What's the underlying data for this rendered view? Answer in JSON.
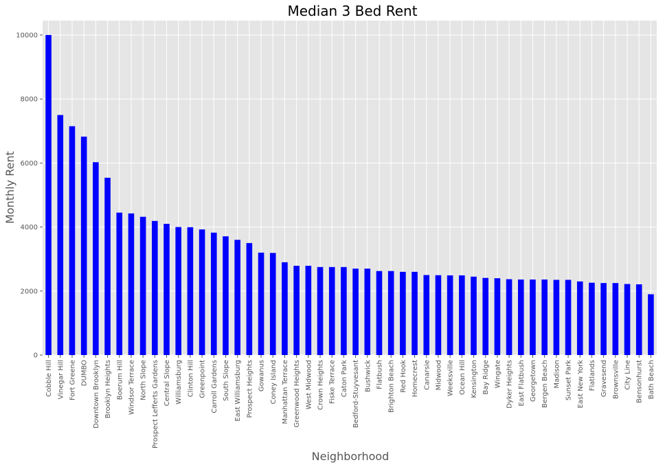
{
  "chart_data": {
    "type": "bar",
    "title": "Median 3 Bed Rent",
    "xlabel": "Neighborhood",
    "ylabel": "Monthly Rent",
    "ylim": [
      0,
      10450
    ],
    "yticks": [
      0,
      2000,
      4000,
      6000,
      8000,
      10000
    ],
    "grid": true,
    "colors": {
      "bar": "#0000ff",
      "plot_background": "#e5e5e5",
      "gridline": "#ffffff"
    },
    "categories": [
      "Cobble Hill",
      "Vinegar Hill",
      "Fort Greene",
      "DUMBO",
      "Downtown Brooklyn",
      "Brooklyn Heights",
      "Boerum Hill",
      "Windsor Terrace",
      "North Slope",
      "Prospect Lefferts Gardens",
      "Central Slope",
      "Williamsburg",
      "Clinton Hill",
      "Greenpoint",
      "Carroll Gardens",
      "South Slope",
      "East Williamsburg",
      "Prospect Heights",
      "Gowanus",
      "Coney Island",
      "Manhattan Terrace",
      "Greenwood Heights",
      "West Midwood",
      "Crown Heights",
      "Fiske Terrace",
      "Caton Park",
      "Bedford-Stuyvesant",
      "Bushwick",
      "Flatbush",
      "Brighton Beach",
      "Red Hook",
      "Homecrest",
      "Canarsie",
      "Midwood",
      "Weeksville",
      "Ocean Hill",
      "Kensington",
      "Bay Ridge",
      "Wingate",
      "Dyker Heights",
      "East Flatbush",
      "Georgetown",
      "Bergen Beach",
      "Madison",
      "Sunset Park",
      "East New York",
      "Flatlands",
      "Gravesend",
      "Brownsville",
      "City Line",
      "Bensonhurst",
      "Bath Beach"
    ],
    "values": [
      10000,
      7500,
      7150,
      6825,
      6025,
      5540,
      4450,
      4425,
      4320,
      4190,
      4100,
      4000,
      3995,
      3925,
      3825,
      3710,
      3600,
      3500,
      3200,
      3190,
      2900,
      2790,
      2790,
      2750,
      2750,
      2750,
      2700,
      2700,
      2625,
      2625,
      2600,
      2600,
      2500,
      2495,
      2490,
      2490,
      2450,
      2410,
      2400,
      2370,
      2360,
      2360,
      2360,
      2350,
      2350,
      2300,
      2260,
      2250,
      2250,
      2220,
      2210,
      1900
    ]
  }
}
